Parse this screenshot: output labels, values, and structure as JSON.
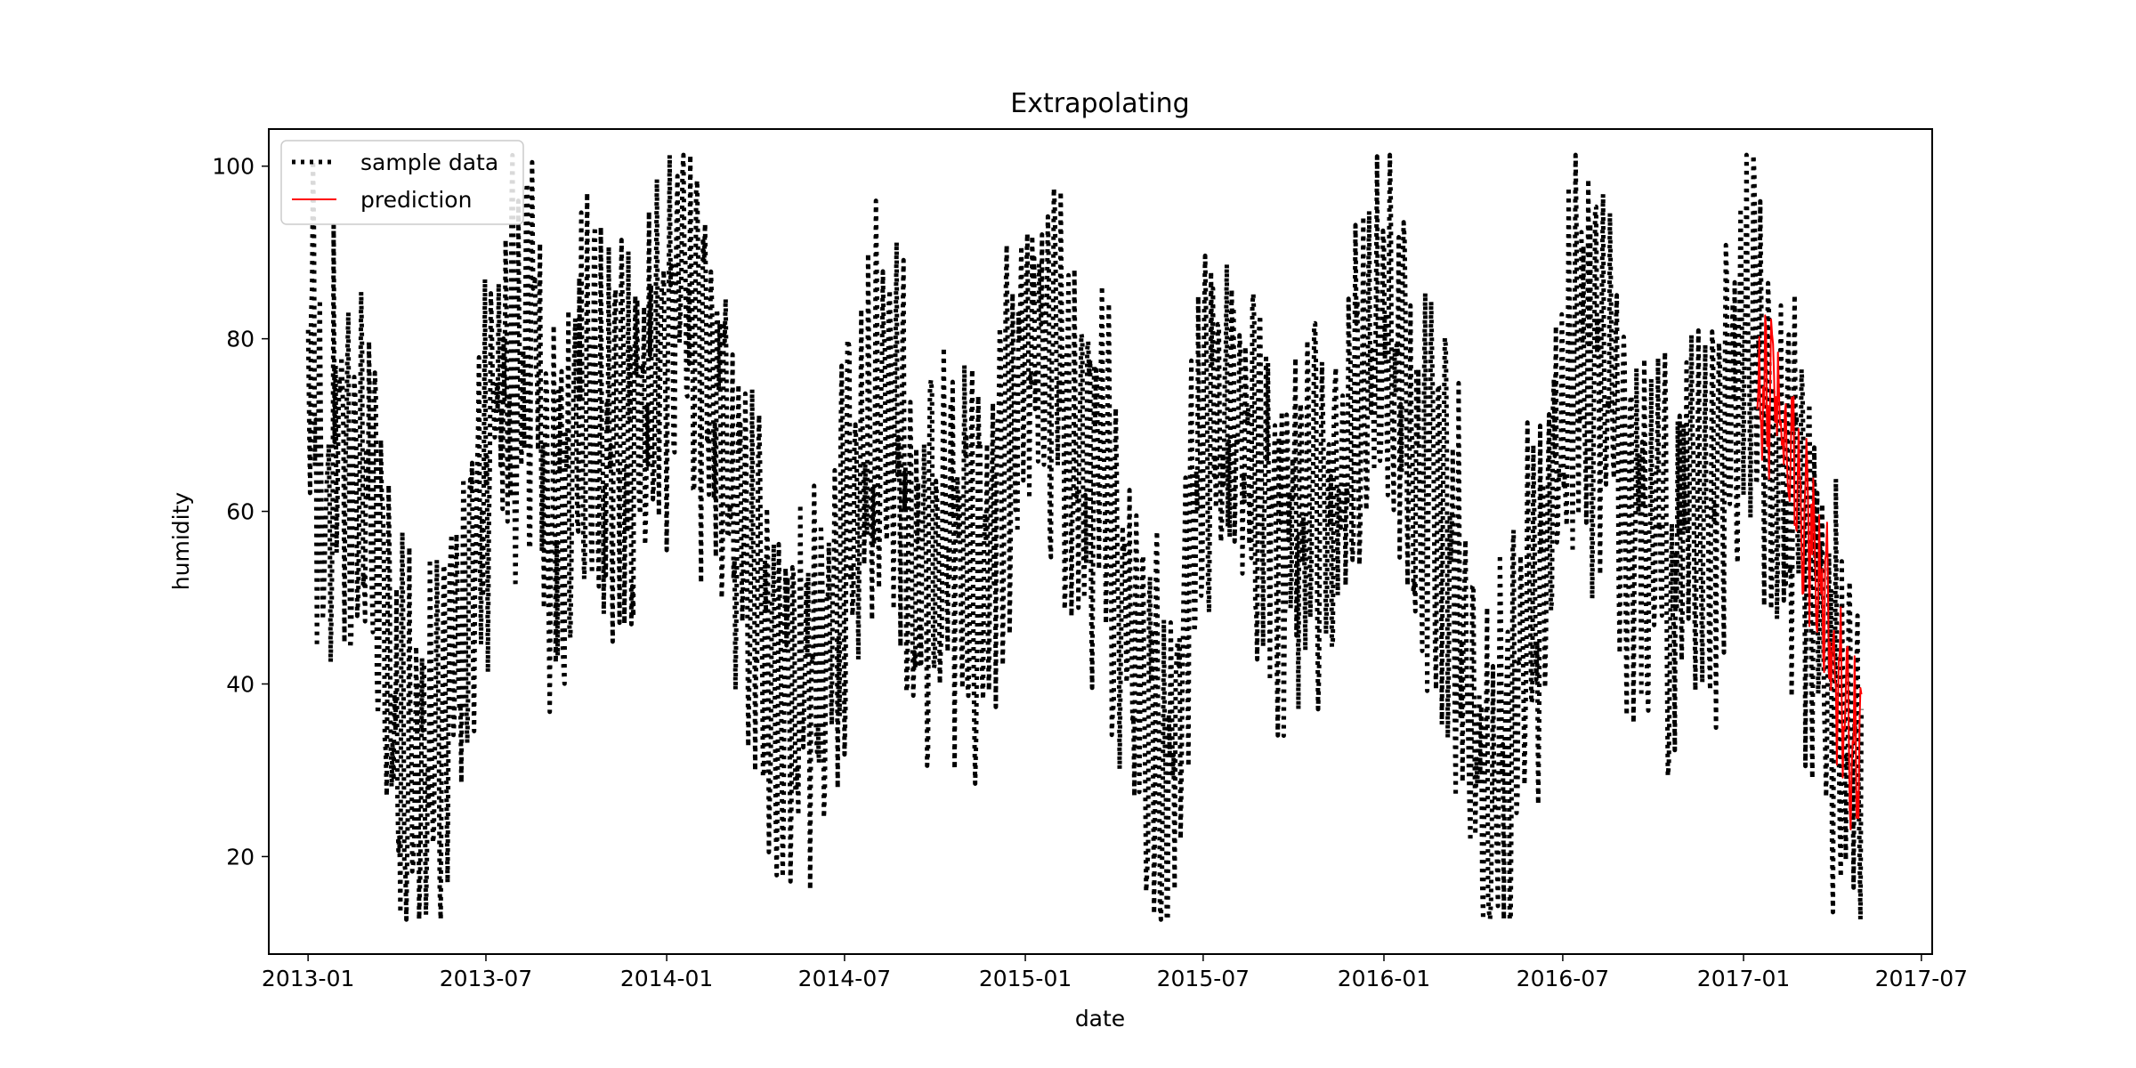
{
  "chart_data": {
    "type": "line",
    "title": "Extrapolating",
    "xlabel": "date",
    "ylabel": "humidity",
    "xlim": [
      "2012-11-22",
      "2017-07-12"
    ],
    "ylim": [
      8.7,
      104.3
    ],
    "xticks": [
      "2013-01",
      "2013-07",
      "2014-01",
      "2014-07",
      "2015-01",
      "2015-07",
      "2016-01",
      "2016-07",
      "2017-01",
      "2017-07"
    ],
    "yticks": [
      20,
      40,
      60,
      80,
      100
    ],
    "grid": false,
    "legend": {
      "placement": "top-left"
    },
    "colors": {
      "sample": "#000000",
      "prediction": "#ff0000"
    },
    "series": [
      {
        "name": "sample data",
        "style": "dotted",
        "x_start": "2013-01-01",
        "x_step_days": 1,
        "anchors": [
          [
            "2013-01-01",
            85
          ],
          [
            "2013-01-10",
            70
          ],
          [
            "2013-01-20",
            62
          ],
          [
            "2013-02-01",
            70
          ],
          [
            "2013-02-15",
            66
          ],
          [
            "2013-03-01",
            60
          ],
          [
            "2013-03-10",
            55
          ],
          [
            "2013-03-20",
            48
          ],
          [
            "2013-04-01",
            30
          ],
          [
            "2013-04-15",
            31
          ],
          [
            "2013-05-01",
            30
          ],
          [
            "2013-05-15",
            28
          ],
          [
            "2013-06-01",
            42
          ],
          [
            "2013-06-15",
            52
          ],
          [
            "2013-07-01",
            66
          ],
          [
            "2013-07-15",
            75
          ],
          [
            "2013-08-01",
            76
          ],
          [
            "2013-08-20",
            80
          ],
          [
            "2013-09-05",
            60
          ],
          [
            "2013-09-20",
            63
          ],
          [
            "2013-10-05",
            74
          ],
          [
            "2013-10-20",
            72
          ],
          [
            "2013-11-05",
            65
          ],
          [
            "2013-11-20",
            67
          ],
          [
            "2013-12-10",
            70
          ],
          [
            "2014-01-01",
            82
          ],
          [
            "2014-01-20",
            86
          ],
          [
            "2014-02-05",
            78
          ],
          [
            "2014-02-20",
            72
          ],
          [
            "2014-03-10",
            60
          ],
          [
            "2014-03-25",
            55
          ],
          [
            "2014-04-10",
            46
          ],
          [
            "2014-04-25",
            40
          ],
          [
            "2014-05-10",
            42
          ],
          [
            "2014-05-25",
            40
          ],
          [
            "2014-06-10",
            44
          ],
          [
            "2014-06-25",
            50
          ],
          [
            "2014-07-10",
            64
          ],
          [
            "2014-07-25",
            68
          ],
          [
            "2014-08-10",
            72
          ],
          [
            "2014-08-25",
            70
          ],
          [
            "2014-09-10",
            52
          ],
          [
            "2014-09-25",
            55
          ],
          [
            "2014-10-10",
            60
          ],
          [
            "2014-10-25",
            56
          ],
          [
            "2014-11-10",
            54
          ],
          [
            "2014-11-25",
            56
          ],
          [
            "2014-12-10",
            70
          ],
          [
            "2015-01-01",
            80
          ],
          [
            "2015-01-15",
            82
          ],
          [
            "2015-02-01",
            78
          ],
          [
            "2015-02-15",
            64
          ],
          [
            "2015-03-01",
            66
          ],
          [
            "2015-03-20",
            62
          ],
          [
            "2015-04-05",
            52
          ],
          [
            "2015-04-20",
            44
          ],
          [
            "2015-05-05",
            38
          ],
          [
            "2015-05-20",
            32
          ],
          [
            "2015-06-05",
            40
          ],
          [
            "2015-06-20",
            58
          ],
          [
            "2015-07-05",
            70
          ],
          [
            "2015-07-20",
            72
          ],
          [
            "2015-08-05",
            74
          ],
          [
            "2015-08-20",
            68
          ],
          [
            "2015-09-05",
            58
          ],
          [
            "2015-09-20",
            56
          ],
          [
            "2015-10-05",
            60
          ],
          [
            "2015-10-20",
            62
          ],
          [
            "2015-11-05",
            60
          ],
          [
            "2015-11-20",
            66
          ],
          [
            "2015-12-05",
            72
          ],
          [
            "2015-12-20",
            75
          ],
          [
            "2016-01-05",
            80
          ],
          [
            "2016-01-20",
            76
          ],
          [
            "2016-02-05",
            64
          ],
          [
            "2016-02-20",
            58
          ],
          [
            "2016-03-05",
            58
          ],
          [
            "2016-03-20",
            48
          ],
          [
            "2016-04-05",
            32
          ],
          [
            "2016-04-20",
            27
          ],
          [
            "2016-05-05",
            34
          ],
          [
            "2016-05-20",
            44
          ],
          [
            "2016-06-05",
            50
          ],
          [
            "2016-06-20",
            62
          ],
          [
            "2016-07-05",
            72
          ],
          [
            "2016-07-20",
            78
          ],
          [
            "2016-08-05",
            75
          ],
          [
            "2016-08-20",
            73
          ],
          [
            "2016-09-05",
            60
          ],
          [
            "2016-09-20",
            60
          ],
          [
            "2016-10-05",
            58
          ],
          [
            "2016-10-20",
            52
          ],
          [
            "2016-11-05",
            60
          ],
          [
            "2016-11-20",
            58
          ],
          [
            "2016-12-05",
            60
          ],
          [
            "2016-12-20",
            70
          ],
          [
            "2017-01-05",
            82
          ],
          [
            "2017-01-20",
            76
          ],
          [
            "2017-02-05",
            68
          ],
          [
            "2017-02-20",
            62
          ],
          [
            "2017-03-05",
            55
          ],
          [
            "2017-03-20",
            50
          ],
          [
            "2017-04-05",
            38
          ],
          [
            "2017-04-20",
            32
          ],
          [
            "2017-05-01",
            30
          ]
        ]
      },
      {
        "name": "prediction",
        "style": "solid",
        "x_start": "2017-01-15",
        "x_step_days": 1,
        "anchors": [
          [
            "2017-01-15",
            72
          ],
          [
            "2017-02-01",
            74
          ],
          [
            "2017-02-15",
            68
          ],
          [
            "2017-03-01",
            62
          ],
          [
            "2017-03-15",
            54
          ],
          [
            "2017-04-01",
            46
          ],
          [
            "2017-04-15",
            34
          ],
          [
            "2017-05-01",
            32
          ]
        ]
      }
    ]
  }
}
